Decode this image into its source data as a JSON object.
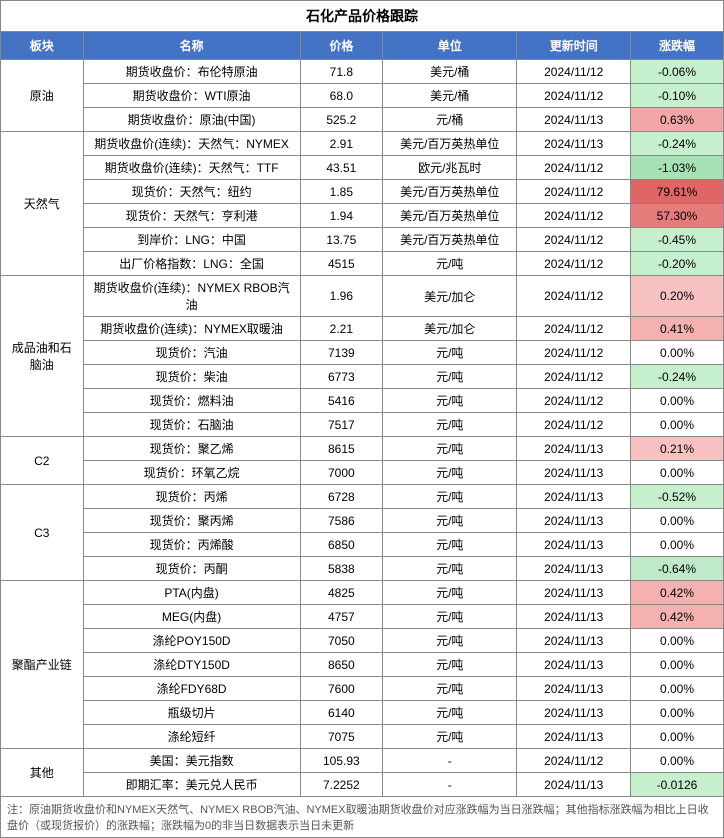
{
  "title": "石化产品价格跟踪",
  "headers": [
    "板块",
    "名称",
    "价格",
    "单位",
    "更新时间",
    "涨跌幅"
  ],
  "col_widths": [
    "80px",
    "210px",
    "80px",
    "130px",
    "110px",
    "90px"
  ],
  "colors": {
    "header_bg": "#4472c4",
    "header_fg": "#ffffff",
    "neg_bg": "#c6efce",
    "pos_bg": "#f8c1c1",
    "pos_strong_bg": "#e67b7b",
    "border": "#888888"
  },
  "groups": [
    {
      "sector": "原油",
      "rows": [
        {
          "name": "期货收盘价：布伦特原油",
          "price": "71.8",
          "unit": "美元/桶",
          "date": "2024/11/12",
          "chg": "-0.06%",
          "chg_bg": "#c6efce"
        },
        {
          "name": "期货收盘价：WTI原油",
          "price": "68.0",
          "unit": "美元/桶",
          "date": "2024/11/12",
          "chg": "-0.10%",
          "chg_bg": "#c6efce"
        },
        {
          "name": "期货收盘价：原油(中国)",
          "price": "525.2",
          "unit": "元/桶",
          "date": "2024/11/13",
          "chg": "0.63%",
          "chg_bg": "#f4a6a6"
        }
      ]
    },
    {
      "sector": "天然气",
      "rows": [
        {
          "name": "期货收盘价(连续)：天然气：NYMEX",
          "price": "2.91",
          "unit": "美元/百万英热单位",
          "date": "2024/11/13",
          "chg": "-0.24%",
          "chg_bg": "#c6efce"
        },
        {
          "name": "期货收盘价(连续)：天然气：TTF",
          "price": "43.51",
          "unit": "欧元/兆瓦时",
          "date": "2024/11/12",
          "chg": "-1.03%",
          "chg_bg": "#a8e2b4"
        },
        {
          "name": "现货价：天然气：纽约",
          "price": "1.85",
          "unit": "美元/百万英热单位",
          "date": "2024/11/12",
          "chg": "79.61%",
          "chg_bg": "#e06666"
        },
        {
          "name": "现货价：天然气：亨利港",
          "price": "1.94",
          "unit": "美元/百万英热单位",
          "date": "2024/11/12",
          "chg": "57.30%",
          "chg_bg": "#e67b7b"
        },
        {
          "name": "到岸价：LNG：中国",
          "price": "13.75",
          "unit": "美元/百万英热单位",
          "date": "2024/11/12",
          "chg": "-0.45%",
          "chg_bg": "#c6efce"
        },
        {
          "name": "出厂价格指数：LNG：全国",
          "price": "4515",
          "unit": "元/吨",
          "date": "2024/11/12",
          "chg": "-0.20%",
          "chg_bg": "#c6efce"
        }
      ]
    },
    {
      "sector": "成品油和石脑油",
      "rows": [
        {
          "name": "期货收盘价(连续)：NYMEX RBOB汽油",
          "price": "1.96",
          "unit": "美元/加仑",
          "date": "2024/11/12",
          "chg": "0.20%",
          "chg_bg": "#f8c1c1"
        },
        {
          "name": "期货收盘价(连续)：NYMEX取暖油",
          "price": "2.21",
          "unit": "美元/加仑",
          "date": "2024/11/12",
          "chg": "0.41%",
          "chg_bg": "#f5b0b0"
        },
        {
          "name": "现货价：汽油",
          "price": "7139",
          "unit": "元/吨",
          "date": "2024/11/12",
          "chg": "0.00%",
          "chg_bg": "#ffffff"
        },
        {
          "name": "现货价：柴油",
          "price": "6773",
          "unit": "元/吨",
          "date": "2024/11/12",
          "chg": "-0.24%",
          "chg_bg": "#c6efce"
        },
        {
          "name": "现货价：燃料油",
          "price": "5416",
          "unit": "元/吨",
          "date": "2024/11/12",
          "chg": "0.00%",
          "chg_bg": "#ffffff"
        },
        {
          "name": "现货价：石脑油",
          "price": "7517",
          "unit": "元/吨",
          "date": "2024/11/12",
          "chg": "0.00%",
          "chg_bg": "#ffffff"
        }
      ]
    },
    {
      "sector": "C2",
      "rows": [
        {
          "name": "现货价：聚乙烯",
          "price": "8615",
          "unit": "元/吨",
          "date": "2024/11/13",
          "chg": "0.21%",
          "chg_bg": "#f8c1c1"
        },
        {
          "name": "现货价：环氧乙烷",
          "price": "7000",
          "unit": "元/吨",
          "date": "2024/11/13",
          "chg": "0.00%",
          "chg_bg": "#ffffff"
        }
      ]
    },
    {
      "sector": "C3",
      "rows": [
        {
          "name": "现货价：丙烯",
          "price": "6728",
          "unit": "元/吨",
          "date": "2024/11/13",
          "chg": "-0.52%",
          "chg_bg": "#c6efce"
        },
        {
          "name": "现货价：聚丙烯",
          "price": "7586",
          "unit": "元/吨",
          "date": "2024/11/13",
          "chg": "0.00%",
          "chg_bg": "#ffffff"
        },
        {
          "name": "现货价：丙烯酸",
          "price": "6850",
          "unit": "元/吨",
          "date": "2024/11/13",
          "chg": "0.00%",
          "chg_bg": "#ffffff"
        },
        {
          "name": "现货价：丙酮",
          "price": "5838",
          "unit": "元/吨",
          "date": "2024/11/13",
          "chg": "-0.64%",
          "chg_bg": "#bfe9c8"
        }
      ]
    },
    {
      "sector": "聚酯产业链",
      "rows": [
        {
          "name": "PTA(内盘)",
          "price": "4825",
          "unit": "元/吨",
          "date": "2024/11/13",
          "chg": "0.42%",
          "chg_bg": "#f5b0b0"
        },
        {
          "name": "MEG(内盘)",
          "price": "4757",
          "unit": "元/吨",
          "date": "2024/11/13",
          "chg": "0.42%",
          "chg_bg": "#f5b0b0"
        },
        {
          "name": "涤纶POY150D",
          "price": "7050",
          "unit": "元/吨",
          "date": "2024/11/13",
          "chg": "0.00%",
          "chg_bg": "#ffffff"
        },
        {
          "name": "涤纶DTY150D",
          "price": "8650",
          "unit": "元/吨",
          "date": "2024/11/13",
          "chg": "0.00%",
          "chg_bg": "#ffffff"
        },
        {
          "name": "涤纶FDY68D",
          "price": "7600",
          "unit": "元/吨",
          "date": "2024/11/13",
          "chg": "0.00%",
          "chg_bg": "#ffffff"
        },
        {
          "name": "瓶级切片",
          "price": "6140",
          "unit": "元/吨",
          "date": "2024/11/13",
          "chg": "0.00%",
          "chg_bg": "#ffffff"
        },
        {
          "name": "涤纶短纤",
          "price": "7075",
          "unit": "元/吨",
          "date": "2024/11/13",
          "chg": "0.00%",
          "chg_bg": "#ffffff"
        }
      ]
    },
    {
      "sector": "其他",
      "rows": [
        {
          "name": "美国：美元指数",
          "price": "105.93",
          "unit": "-",
          "date": "2024/11/12",
          "chg": "0.00%",
          "chg_bg": "#ffffff"
        },
        {
          "name": "即期汇率：美元兑人民币",
          "price": "7.2252",
          "unit": "-",
          "date": "2024/11/13",
          "chg": "-0.0126",
          "chg_bg": "#c6efce"
        }
      ]
    }
  ],
  "footnote": "注：原油期货收盘价和NYMEX天然气、NYMEX RBOB汽油、NYMEX取暖油期货收盘价对应涨跌幅为当日涨跌幅；其他指标涨跌幅为相比上日收盘价（或现货报价）的涨跌幅；涨跌幅为0的非当日数据表示当日未更新"
}
